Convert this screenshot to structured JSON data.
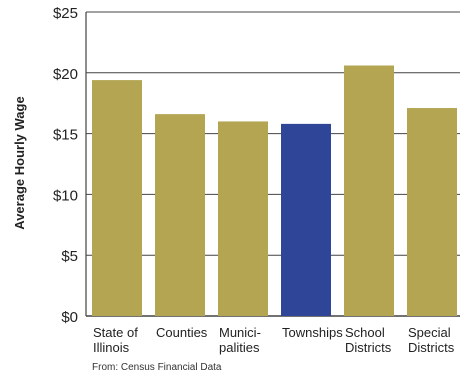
{
  "chart_data": {
    "type": "bar",
    "categories": [
      [
        "State of",
        "Illinois"
      ],
      [
        "Counties"
      ],
      [
        "Munici-",
        "palities"
      ],
      [
        "Townships"
      ],
      [
        "School",
        "Districts"
      ],
      [
        "Special",
        "Districts"
      ]
    ],
    "values": [
      19.4,
      16.6,
      16.0,
      15.8,
      20.6,
      17.1
    ],
    "highlight_index": 3,
    "title": "",
    "xlabel": "",
    "ylabel": "Average Hourly Wage",
    "ylim": [
      0,
      25
    ],
    "yticks": [
      0,
      5,
      10,
      15,
      20,
      25
    ],
    "ytick_labels": [
      "$0",
      "$5",
      "$10",
      "$15",
      "$20",
      "$25"
    ],
    "grid": true,
    "colors": {
      "bar": "#b3a552",
      "highlight": "#2f4597",
      "grid": "#444444"
    }
  },
  "source_note": "From: Census Financial Data"
}
